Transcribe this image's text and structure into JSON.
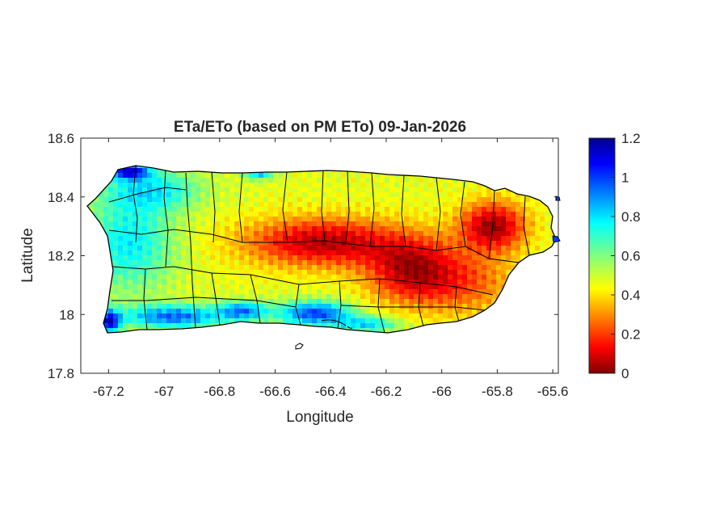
{
  "title": "ETa/ETo (based on PM ETo) 09-Jan-2026",
  "xlabel": "Longitude",
  "ylabel": "Latitude",
  "map": {
    "region": "Puerto Rico",
    "xlim": [
      -67.3,
      -65.58
    ],
    "ylim": [
      17.8,
      18.6
    ],
    "x_ticks": [
      "-67.2",
      "-67",
      "-66.8",
      "-66.6",
      "-66.4",
      "-66.2",
      "-66",
      "-65.8",
      "-65.6"
    ],
    "y_ticks": [
      "18.6",
      "18.4",
      "18.2",
      "18",
      "17.8"
    ],
    "boundary_color": "#000000"
  },
  "colorbar": {
    "colormap": "jet",
    "range": [
      0,
      1.2
    ],
    "ticks": [
      "1.2",
      "1",
      "0.8",
      "0.6",
      "0.4",
      "0.2",
      "0"
    ]
  },
  "chart_data": {
    "type": "heatmap",
    "title": "ETa/ETo (based on PM ETo) 09-Jan-2026",
    "xlabel": "Longitude",
    "ylabel": "Latitude",
    "xlim": [
      -67.3,
      -65.58
    ],
    "ylim": [
      17.8,
      18.6
    ],
    "clim": [
      0,
      1.2
    ],
    "grid": false
  }
}
